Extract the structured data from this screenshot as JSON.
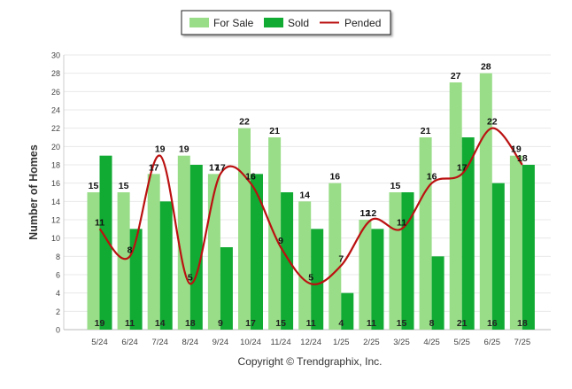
{
  "chart_data": {
    "type": "bar",
    "categories": [
      "5/24",
      "6/24",
      "7/24",
      "8/24",
      "9/24",
      "10/24",
      "11/24",
      "12/24",
      "1/25",
      "2/25",
      "3/25",
      "4/25",
      "5/25",
      "6/25",
      "7/25"
    ],
    "ylabel": "Number of Homes",
    "xlabel": "",
    "ylim": [
      0,
      30
    ],
    "yticks": [
      0,
      2,
      4,
      6,
      8,
      10,
      12,
      14,
      16,
      18,
      20,
      22,
      24,
      26,
      28,
      30
    ],
    "grid": true,
    "legend_position": "top-center",
    "series": [
      {
        "name": "For Sale",
        "kind": "bar",
        "color": "#99dd88",
        "values": [
          15,
          15,
          17,
          19,
          17,
          22,
          21,
          14,
          16,
          12,
          15,
          21,
          27,
          28,
          19
        ]
      },
      {
        "name": "Sold",
        "kind": "bar",
        "color": "#11aa33",
        "values": [
          19,
          11,
          14,
          18,
          9,
          17,
          15,
          11,
          4,
          11,
          15,
          8,
          21,
          16,
          18
        ]
      },
      {
        "name": "Pended",
        "kind": "line",
        "color": "#bb1111",
        "values": [
          11,
          8,
          19,
          5,
          17,
          16,
          9,
          5,
          7,
          12,
          11,
          16,
          17,
          22,
          18
        ]
      }
    ],
    "footer": "Copyright © Trendgraphix, Inc."
  }
}
